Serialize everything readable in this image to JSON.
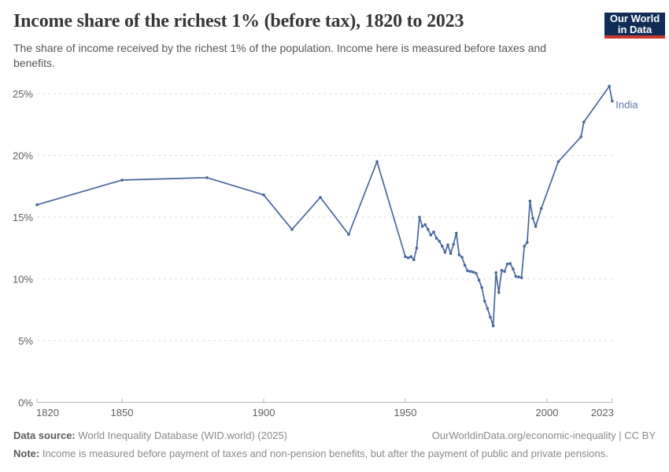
{
  "header": {
    "title": "Income share of the richest 1% (before tax), 1820 to 2023",
    "subtitle": "The share of income received by the richest 1% of the population. Income here is measured before taxes and benefits.",
    "logo": {
      "line1": "Our World",
      "line2": "in Data",
      "bg_color": "#112d56",
      "accent_color": "#cd372d"
    }
  },
  "chart_data": {
    "type": "line",
    "title": "Income share of the richest 1% (before tax), 1820 to 2023",
    "xlabel": "",
    "ylabel": "",
    "xlim": [
      1820,
      2023
    ],
    "ylim": [
      0,
      26.4
    ],
    "x_ticks": [
      1820,
      1850,
      1900,
      1950,
      2000,
      2023
    ],
    "y_ticks": [
      0,
      5,
      10,
      15,
      20,
      25
    ],
    "y_tick_suffix": "%",
    "grid": "horizontal-dashed",
    "legend": "end-of-line-label",
    "colors": {
      "line": "#4966a0",
      "grid": "#dcdcdc",
      "axis": "#b6b6b6",
      "tick_label": "#5f5f5f"
    },
    "series": [
      {
        "name": "India",
        "color": "#4966a0",
        "points": [
          [
            1820,
            16.0
          ],
          [
            1850,
            18.0
          ],
          [
            1880,
            18.2
          ],
          [
            1900,
            16.8
          ],
          [
            1910,
            14.0
          ],
          [
            1920,
            16.6
          ],
          [
            1930,
            13.6
          ],
          [
            1940,
            19.5
          ],
          [
            1950,
            11.8
          ],
          [
            1951,
            11.7
          ],
          [
            1952,
            11.8
          ],
          [
            1953,
            11.55
          ],
          [
            1954,
            12.5
          ],
          [
            1955,
            15.0
          ],
          [
            1956,
            14.25
          ],
          [
            1957,
            14.4
          ],
          [
            1958,
            14.0
          ],
          [
            1959,
            13.55
          ],
          [
            1960,
            13.8
          ],
          [
            1961,
            13.3
          ],
          [
            1962,
            13.05
          ],
          [
            1963,
            12.65
          ],
          [
            1964,
            12.15
          ],
          [
            1965,
            12.75
          ],
          [
            1966,
            12.05
          ],
          [
            1967,
            12.8
          ],
          [
            1968,
            13.7
          ],
          [
            1969,
            11.95
          ],
          [
            1970,
            11.75
          ],
          [
            1971,
            11.1
          ],
          [
            1972,
            10.65
          ],
          [
            1973,
            10.6
          ],
          [
            1974,
            10.55
          ],
          [
            1975,
            10.45
          ],
          [
            1976,
            9.9
          ],
          [
            1977,
            9.3
          ],
          [
            1978,
            8.2
          ],
          [
            1979,
            7.6
          ],
          [
            1980,
            6.9
          ],
          [
            1981,
            6.2
          ],
          [
            1982,
            10.5
          ],
          [
            1983,
            8.9
          ],
          [
            1984,
            10.7
          ],
          [
            1985,
            10.6
          ],
          [
            1986,
            11.2
          ],
          [
            1987,
            11.25
          ],
          [
            1988,
            10.8
          ],
          [
            1989,
            10.2
          ],
          [
            1990,
            10.15
          ],
          [
            1991,
            10.1
          ],
          [
            1992,
            12.65
          ],
          [
            1993,
            12.95
          ],
          [
            1994,
            16.3
          ],
          [
            1995,
            14.9
          ],
          [
            1996,
            14.25
          ],
          [
            1998,
            15.7
          ],
          [
            2004,
            19.5
          ],
          [
            2012,
            21.5
          ],
          [
            2013,
            22.7
          ],
          [
            2022,
            25.6
          ],
          [
            2023,
            24.4
          ]
        ]
      }
    ]
  },
  "footer": {
    "datasource_label": "Data source:",
    "datasource_text": " World Inequality Database (WID.world) (2025)",
    "link_text": "OurWorldinData.org/economic-inequality | CC BY",
    "note_label": "Note:",
    "note_text": " Income is measured before payment of taxes and non-pension benefits, but after the payment of public and private pensions."
  }
}
